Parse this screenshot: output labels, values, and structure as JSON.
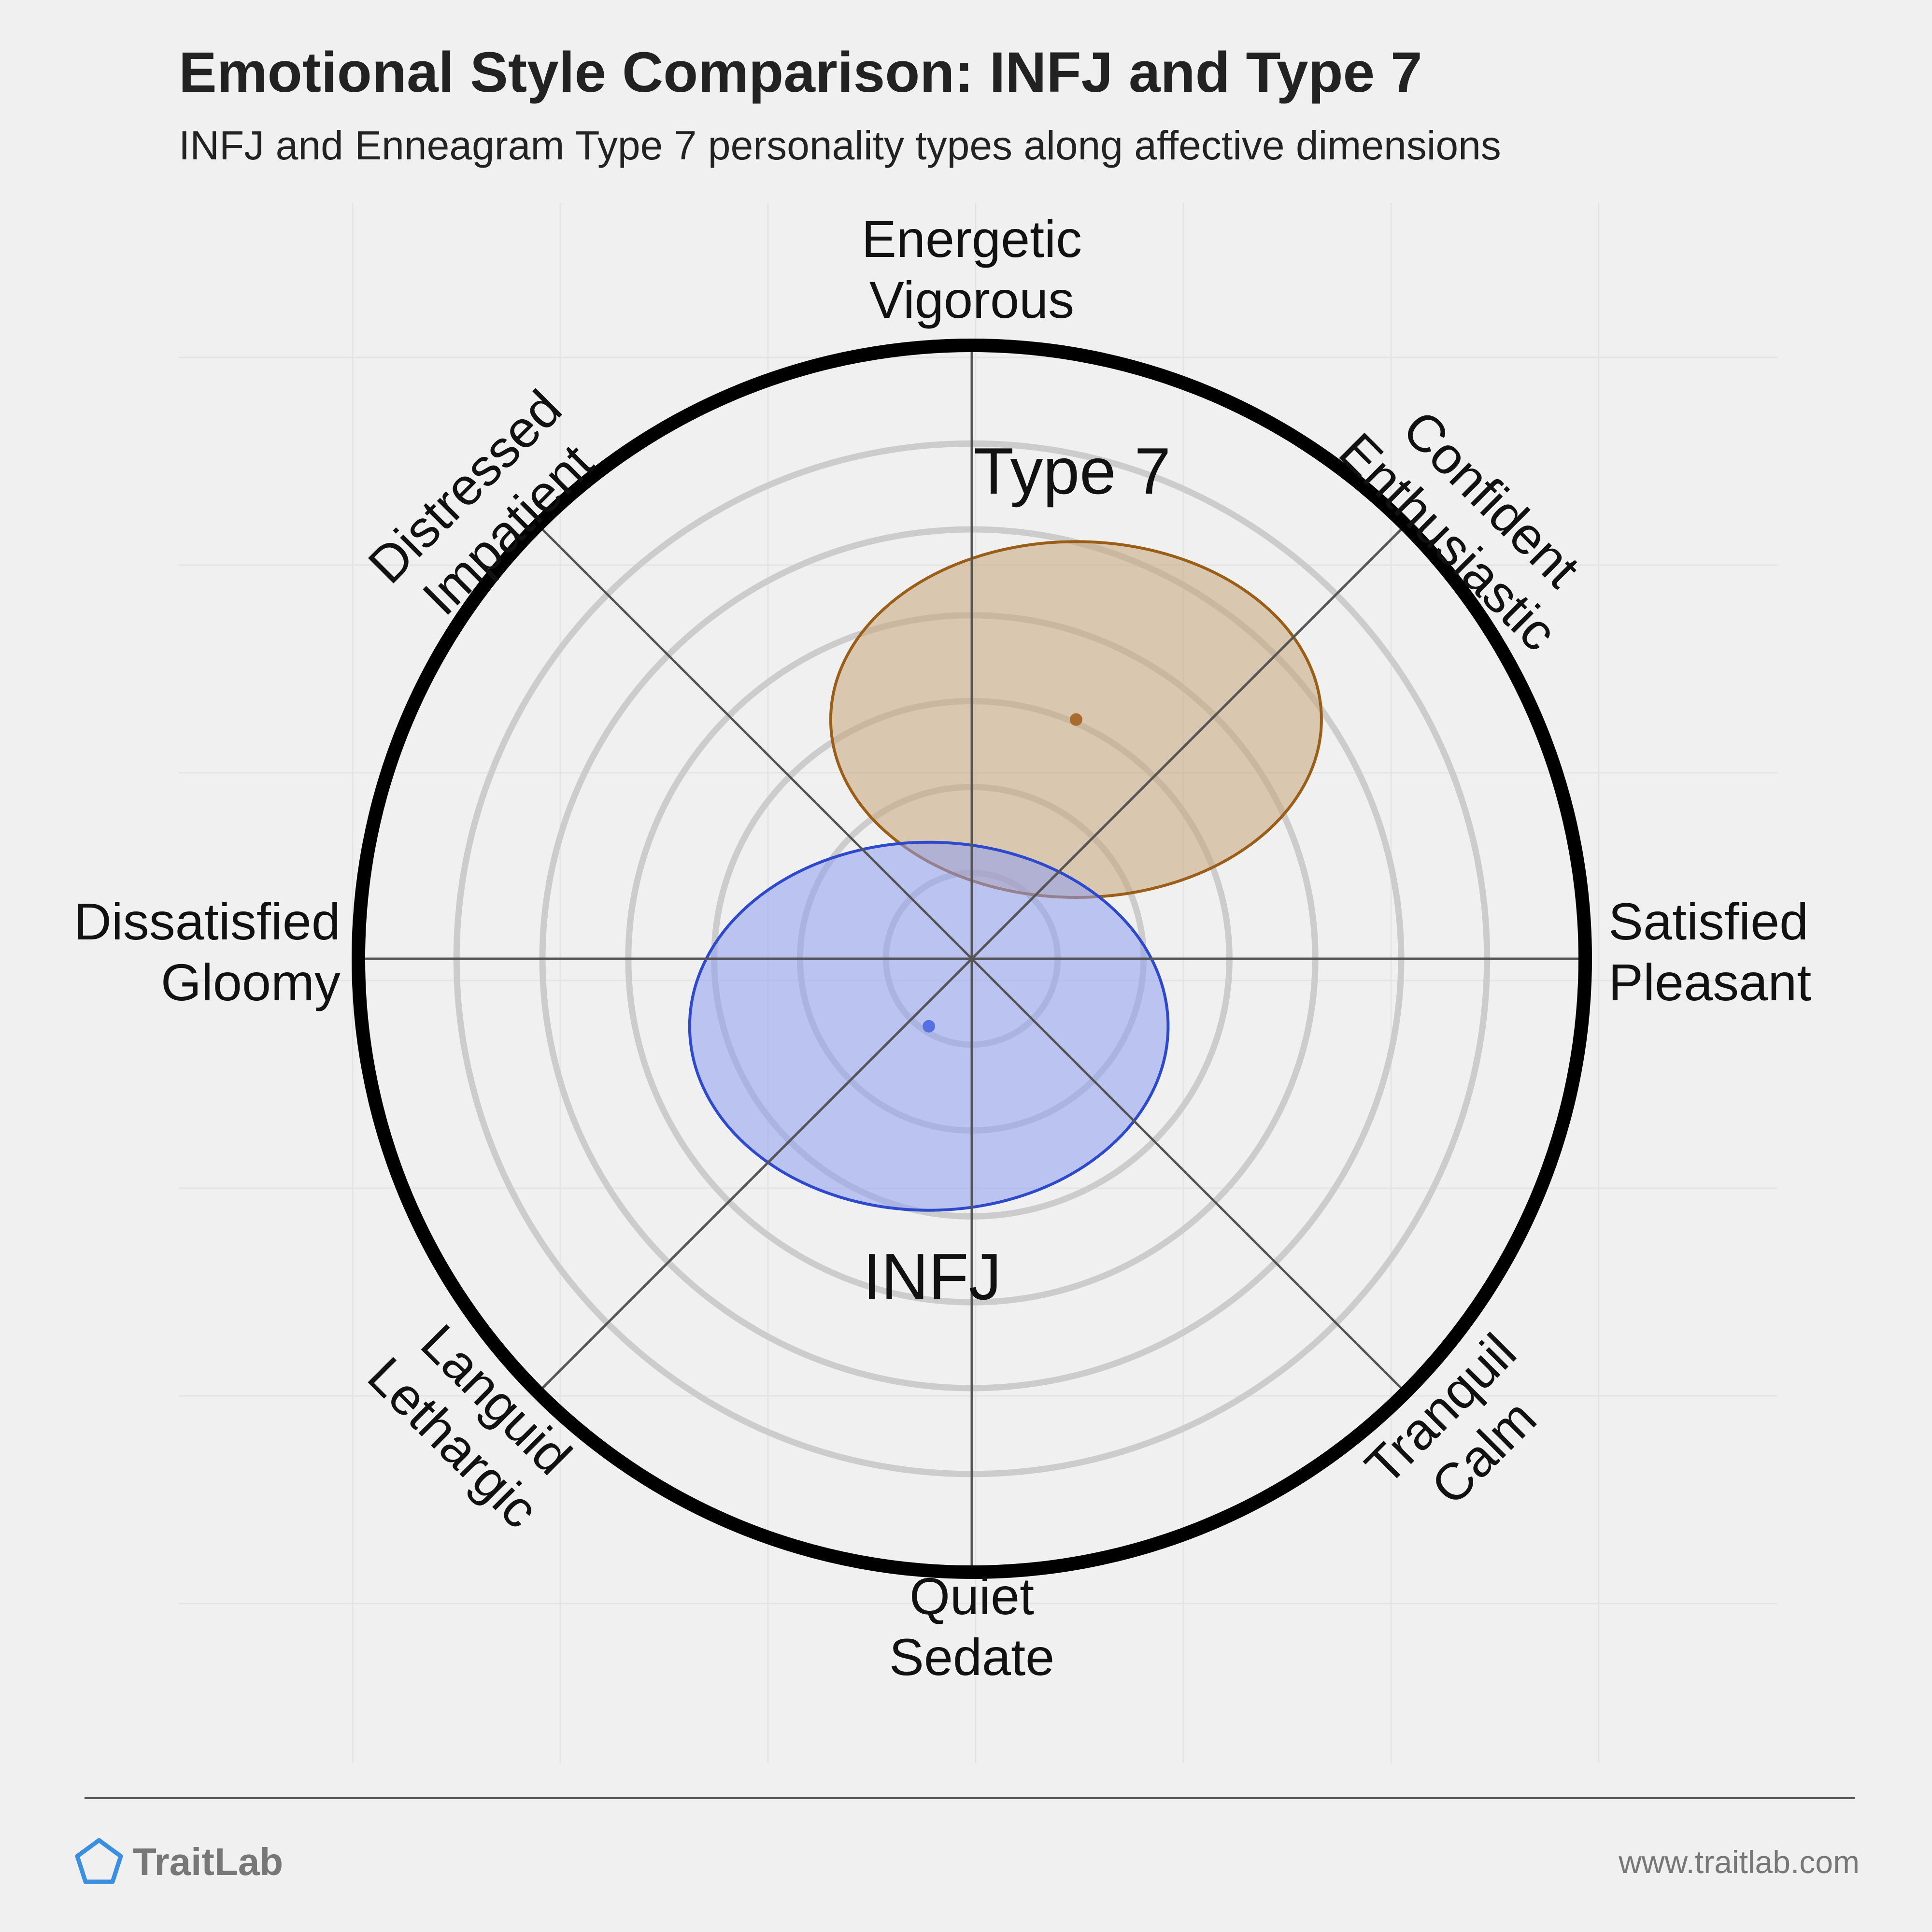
{
  "chart_data": {
    "type": "scatter",
    "subtype": "circumplex",
    "title": "Emotional Style Comparison: INFJ and Type 7",
    "subtitle": "INFJ and Enneagram Type 7 personality types along affective dimensions",
    "range": [
      -1,
      1
    ],
    "ring_count": 6,
    "axes": [
      {
        "angle_deg": 90,
        "lines": [
          "Energetic",
          "Vigorous"
        ]
      },
      {
        "angle_deg": 45,
        "lines": [
          "Confident",
          "Enthusiastic"
        ]
      },
      {
        "angle_deg": 0,
        "lines": [
          "Satisfied",
          "Pleasant"
        ]
      },
      {
        "angle_deg": -45,
        "lines": [
          "Tranquil",
          "Calm"
        ]
      },
      {
        "angle_deg": -90,
        "lines": [
          "Quiet",
          "Sedate"
        ]
      },
      {
        "angle_deg": -135,
        "lines": [
          "Languid",
          "Lethargic"
        ]
      },
      {
        "angle_deg": 180,
        "lines": [
          "Dissatisfied",
          "Gloomy"
        ]
      },
      {
        "angle_deg": 135,
        "lines": [
          "Distressed",
          "Impatient"
        ]
      }
    ],
    "series": [
      {
        "name": "Type 7",
        "x": 0.17,
        "y": 0.39,
        "spread_x": 0.4,
        "spread_y": 0.29,
        "fill": "#c8a57c",
        "stroke": "#9a5e16",
        "point": "#a86d2c",
        "label_color": "#8a531a"
      },
      {
        "name": "INFJ",
        "x": -0.07,
        "y": -0.11,
        "spread_x": 0.39,
        "spread_y": 0.3,
        "fill": "#8f9ef0",
        "stroke": "#2e4acc",
        "point": "#5570e0",
        "label_color": "#2a44b8"
      }
    ],
    "grid": true
  },
  "footer": {
    "brand": "TraitLab",
    "url": "www.traitlab.com",
    "brand_color": "#3a8fe0"
  }
}
